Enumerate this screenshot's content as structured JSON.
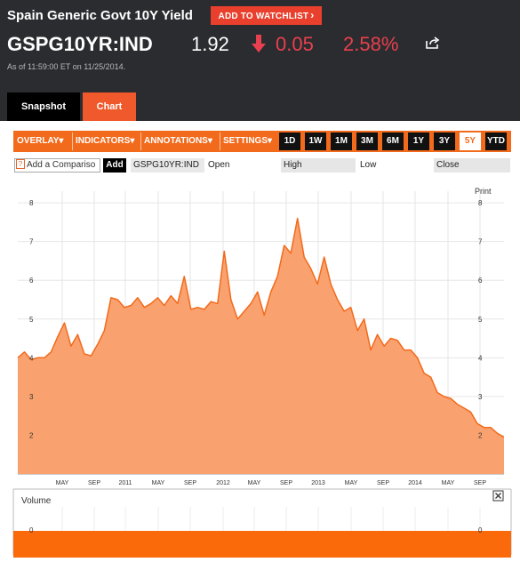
{
  "header": {
    "security_name": "Spain Generic Govt 10Y Yield",
    "watchlist_label": "ADD TO WATCHLIST",
    "ticker": "GSPG10YR:IND",
    "price": "1.92",
    "change": "0.05",
    "change_pct": "2.58%",
    "as_of": "As of 11:59:00 ET on 11/25/2014.",
    "colors": {
      "background": "#2b2c30",
      "negative": "#e8404e",
      "accent": "#f0592b"
    }
  },
  "tabs": [
    {
      "label": "Snapshot",
      "active": false
    },
    {
      "label": "Chart",
      "active": true
    }
  ],
  "toolbar": {
    "menus": [
      "OVERLAY",
      "INDICATORS",
      "ANNOTATIONS",
      "SETTINGS"
    ],
    "ranges": [
      "1D",
      "1W",
      "1M",
      "3M",
      "6M",
      "1Y",
      "3Y",
      "5Y",
      "YTD"
    ],
    "active_range": "5Y"
  },
  "compare": {
    "input_value": "Add a Compariso",
    "add_label": "Add",
    "symbol": "GSPG10YR:IND",
    "open_label": "Open",
    "high_label": "High",
    "low_label": "Low",
    "close_label": "Close"
  },
  "print_label": "Print",
  "volume_label": "Volume",
  "close_icon": "close-icon",
  "chart_data": {
    "type": "area",
    "series": [
      {
        "values": [
          4.0,
          4.15,
          3.95,
          4.0,
          4.0,
          4.15,
          4.55,
          4.9,
          4.3,
          4.6,
          4.1,
          4.05,
          4.35,
          4.7,
          5.55,
          5.5,
          5.3,
          5.35,
          5.55,
          5.3,
          5.4,
          5.55,
          5.35,
          5.6,
          5.4,
          6.1,
          5.25,
          5.3,
          5.25,
          5.45,
          5.4,
          6.75,
          5.5,
          5.0,
          5.2,
          5.4,
          5.7,
          5.1,
          5.7,
          6.1,
          6.9,
          6.7,
          7.6,
          6.6,
          6.3,
          5.9,
          6.6,
          5.9,
          5.5,
          5.2,
          5.3,
          4.7,
          5.0,
          4.2,
          4.6,
          4.3,
          4.5,
          4.45,
          4.2,
          4.2,
          4.0,
          3.6,
          3.5,
          3.1,
          3.0,
          2.95,
          2.8,
          2.7,
          2.6,
          2.3,
          2.2,
          2.2,
          2.05,
          1.95
        ]
      }
    ],
    "x_ticks": [
      "MAY",
      "SEP",
      "2011",
      "MAY",
      "SEP",
      "2012",
      "MAY",
      "SEP",
      "2013",
      "MAY",
      "SEP",
      "2014",
      "MAY",
      "SEP"
    ],
    "y_ticks": [
      "2",
      "3",
      "4",
      "5",
      "6",
      "7",
      "8"
    ],
    "ylim": [
      1.0,
      8.3
    ],
    "volume_ticks": [
      "0"
    ],
    "grid": true,
    "fill_color": "#f9a26f",
    "line_color": "#f26a1b"
  }
}
